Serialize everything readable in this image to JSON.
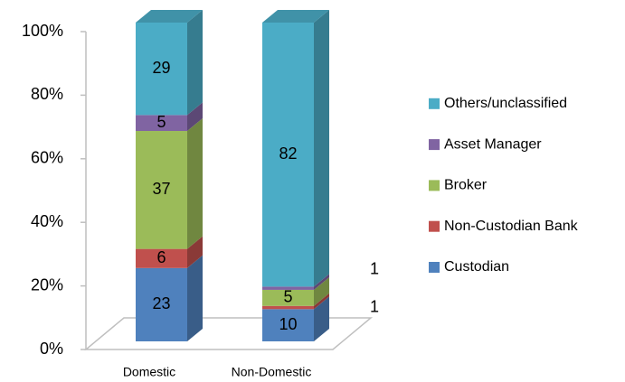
{
  "chart_data": {
    "type": "bar",
    "stacking": "percent",
    "categories": [
      "Domestic",
      "Non-Domestic"
    ],
    "series": [
      {
        "name": "Custodian",
        "color": "#4f81bd",
        "values": [
          23,
          10
        ]
      },
      {
        "name": "Non-Custodian Bank",
        "color": "#c0504d",
        "values": [
          6,
          1
        ]
      },
      {
        "name": "Broker",
        "color": "#9bbb59",
        "values": [
          37,
          5
        ]
      },
      {
        "name": "Asset Manager",
        "color": "#8064a2",
        "values": [
          5,
          1
        ]
      },
      {
        "name": "Others/unclassified",
        "color": "#4bacc6",
        "values": [
          29,
          82
        ]
      }
    ],
    "ylim": [
      0,
      100
    ],
    "yticks": [
      {
        "value": 0,
        "label": "0%"
      },
      {
        "value": 20,
        "label": "20%"
      },
      {
        "value": 40,
        "label": "40%"
      },
      {
        "value": 60,
        "label": "60%"
      },
      {
        "value": 80,
        "label": "80%"
      },
      {
        "value": 100,
        "label": "100%"
      }
    ],
    "legend": "right"
  }
}
